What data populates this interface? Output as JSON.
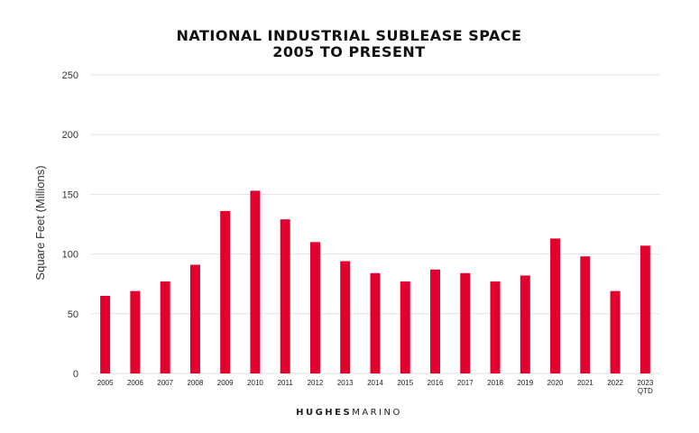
{
  "chart_data": {
    "type": "bar",
    "title": [
      "NATIONAL INDUSTRIAL SUBLEASE SPACE",
      "2005 TO PRESENT"
    ],
    "ylabel": "Square Feet (Millions)",
    "xlabel": "",
    "ylim": [
      0,
      250
    ],
    "yticks": [
      0,
      50,
      100,
      150,
      200,
      250
    ],
    "grid": true,
    "categories": [
      [
        "2005"
      ],
      [
        "2006"
      ],
      [
        "2007"
      ],
      [
        "2008"
      ],
      [
        "2009"
      ],
      [
        "2010"
      ],
      [
        "2011"
      ],
      [
        "2012"
      ],
      [
        "2013"
      ],
      [
        "2014"
      ],
      [
        "2015"
      ],
      [
        "2016"
      ],
      [
        "2017"
      ],
      [
        "2018"
      ],
      [
        "2019"
      ],
      [
        "2020"
      ],
      [
        "2021"
      ],
      [
        "2022"
      ],
      [
        "2023",
        "QTD"
      ]
    ],
    "values": [
      65,
      69,
      77,
      91,
      136,
      153,
      129,
      110,
      94,
      84,
      77,
      87,
      84,
      77,
      82,
      113,
      98,
      69,
      107
    ],
    "bar_color": "#e2002f"
  },
  "branding": {
    "bold": "HUGHES",
    "light": "MARINO"
  }
}
